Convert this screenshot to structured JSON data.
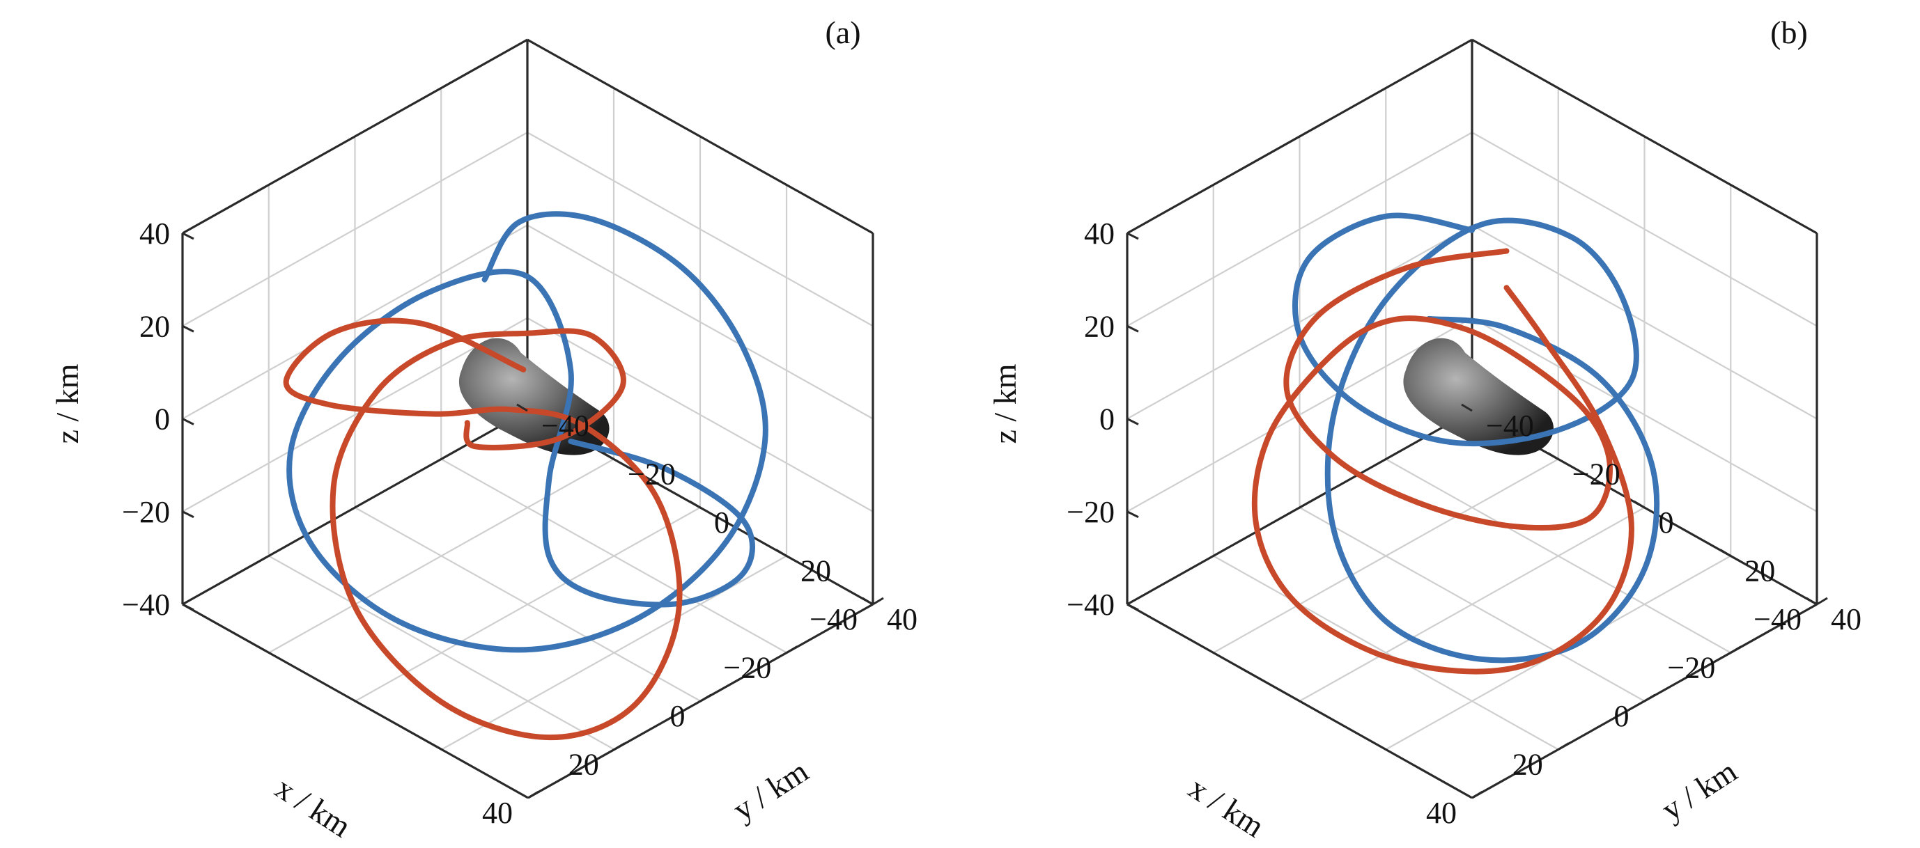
{
  "chart_data": [
    {
      "type": "line3d",
      "panel_label": "(a)",
      "xlabel": "x / km",
      "ylabel": "y / km",
      "zlabel": "z / km",
      "xlim": [
        -40,
        40
      ],
      "ylim": [
        -40,
        40
      ],
      "zlim": [
        -40,
        40
      ],
      "x_ticks": [
        "40",
        "20",
        "0",
        "−20",
        "−40"
      ],
      "y_ticks": [
        "−40",
        "−20",
        "0",
        "20",
        "40"
      ],
      "z_ticks": [
        "40",
        "20",
        "0",
        "−20",
        "−40"
      ],
      "grid": true,
      "colors": {
        "blue": "#3a74b4",
        "red": "#c8482a",
        "asteroid": "#5a5a5a"
      },
      "series": [
        {
          "color": "blue",
          "points": [
            [
              5,
              -5,
              30
            ],
            [
              -8,
              -10,
              33
            ],
            [
              -20,
              -5,
              30
            ],
            [
              -28,
              8,
              22
            ],
            [
              -30,
              20,
              10
            ],
            [
              -25,
              30,
              -2
            ],
            [
              -12,
              34,
              -15
            ],
            [
              5,
              30,
              -25
            ],
            [
              20,
              18,
              -30
            ],
            [
              30,
              0,
              -28
            ],
            [
              32,
              -18,
              -20
            ],
            [
              25,
              -30,
              -10
            ],
            [
              10,
              -34,
              0
            ],
            [
              -5,
              -28,
              10
            ],
            [
              -15,
              -15,
              15
            ],
            [
              -10,
              0,
              5
            ],
            [
              0,
              5,
              -10
            ],
            [
              5,
              10,
              -22
            ],
            [
              0,
              15,
              -30
            ],
            [
              -10,
              25,
              -32
            ],
            [
              -20,
              30,
              -28
            ],
            [
              -25,
              25,
              -22
            ],
            [
              -20,
              12,
              -15
            ],
            [
              -8,
              2,
              -8
            ]
          ]
        },
        {
          "color": "red",
          "points": [
            [
              -2,
              -3,
              8
            ],
            [
              10,
              -15,
              18
            ],
            [
              20,
              -25,
              16
            ],
            [
              28,
              -28,
              8
            ],
            [
              22,
              -24,
              2
            ],
            [
              10,
              -12,
              0
            ],
            [
              2,
              -2,
              2
            ],
            [
              -5,
              8,
              0
            ],
            [
              -10,
              20,
              -12
            ],
            [
              -5,
              30,
              -28
            ],
            [
              10,
              35,
              -38
            ],
            [
              25,
              30,
              -40
            ],
            [
              35,
              15,
              -35
            ],
            [
              35,
              -5,
              -25
            ],
            [
              25,
              -20,
              -12
            ],
            [
              10,
              -25,
              -2
            ],
            [
              -2,
              -20,
              5
            ],
            [
              -10,
              -10,
              8
            ],
            [
              -15,
              0,
              10
            ],
            [
              -12,
              10,
              6
            ],
            [
              -4,
              4,
              -4
            ],
            [
              6,
              -6,
              -6
            ],
            [
              4,
              -10,
              -4
            ]
          ]
        }
      ]
    },
    {
      "type": "line3d",
      "panel_label": "(b)",
      "xlabel": "x / km",
      "ylabel": "y / km",
      "zlabel": "z / km",
      "xlim": [
        -40,
        40
      ],
      "ylim": [
        -40,
        40
      ],
      "zlim": [
        -40,
        40
      ],
      "x_ticks": [
        "40",
        "20",
        "0",
        "−20",
        "−40"
      ],
      "y_ticks": [
        "−40",
        "−20",
        "0",
        "20",
        "40"
      ],
      "z_ticks": [
        "40",
        "20",
        "0",
        "−20",
        "−40"
      ],
      "grid": true,
      "colors": {
        "blue": "#3a74b4",
        "red": "#c8482a",
        "asteroid": "#5a5a5a"
      },
      "series": [
        {
          "color": "blue",
          "points": [
            [
              -15,
              -15,
              25
            ],
            [
              -5,
              -25,
              28
            ],
            [
              10,
              -28,
              25
            ],
            [
              20,
              -20,
              18
            ],
            [
              22,
              -5,
              12
            ],
            [
              15,
              10,
              8
            ],
            [
              0,
              20,
              8
            ],
            [
              -15,
              22,
              12
            ],
            [
              -25,
              10,
              18
            ],
            [
              -28,
              -5,
              22
            ],
            [
              -20,
              -18,
              22
            ],
            [
              -5,
              -25,
              10
            ],
            [
              10,
              -22,
              -5
            ],
            [
              22,
              -10,
              -18
            ],
            [
              25,
              5,
              -28
            ],
            [
              18,
              20,
              -32
            ],
            [
              5,
              30,
              -30
            ],
            [
              -10,
              30,
              -22
            ],
            [
              -22,
              20,
              -12
            ],
            [
              -25,
              5,
              -2
            ],
            [
              -18,
              -10,
              5
            ],
            [
              -8,
              -18,
              8
            ]
          ]
        },
        {
          "color": "red",
          "points": [
            [
              -8,
              0,
              32
            ],
            [
              5,
              -10,
              30
            ],
            [
              18,
              -18,
              22
            ],
            [
              25,
              -18,
              10
            ],
            [
              22,
              -10,
              -2
            ],
            [
              12,
              0,
              -12
            ],
            [
              0,
              10,
              -18
            ],
            [
              -12,
              15,
              -20
            ],
            [
              -20,
              12,
              -15
            ],
            [
              -22,
              5,
              -8
            ],
            [
              -18,
              -5,
              0
            ],
            [
              -10,
              -12,
              8
            ],
            [
              0,
              -18,
              12
            ],
            [
              10,
              -22,
              8
            ],
            [
              22,
              -25,
              -5
            ],
            [
              30,
              -20,
              -18
            ],
            [
              32,
              -8,
              -28
            ],
            [
              25,
              8,
              -35
            ],
            [
              10,
              20,
              -38
            ],
            [
              -5,
              25,
              -32
            ],
            [
              -15,
              22,
              -20
            ],
            [
              -18,
              12,
              -5
            ],
            [
              -15,
              2,
              10
            ],
            [
              -10,
              -2,
              22
            ]
          ]
        }
      ]
    }
  ]
}
